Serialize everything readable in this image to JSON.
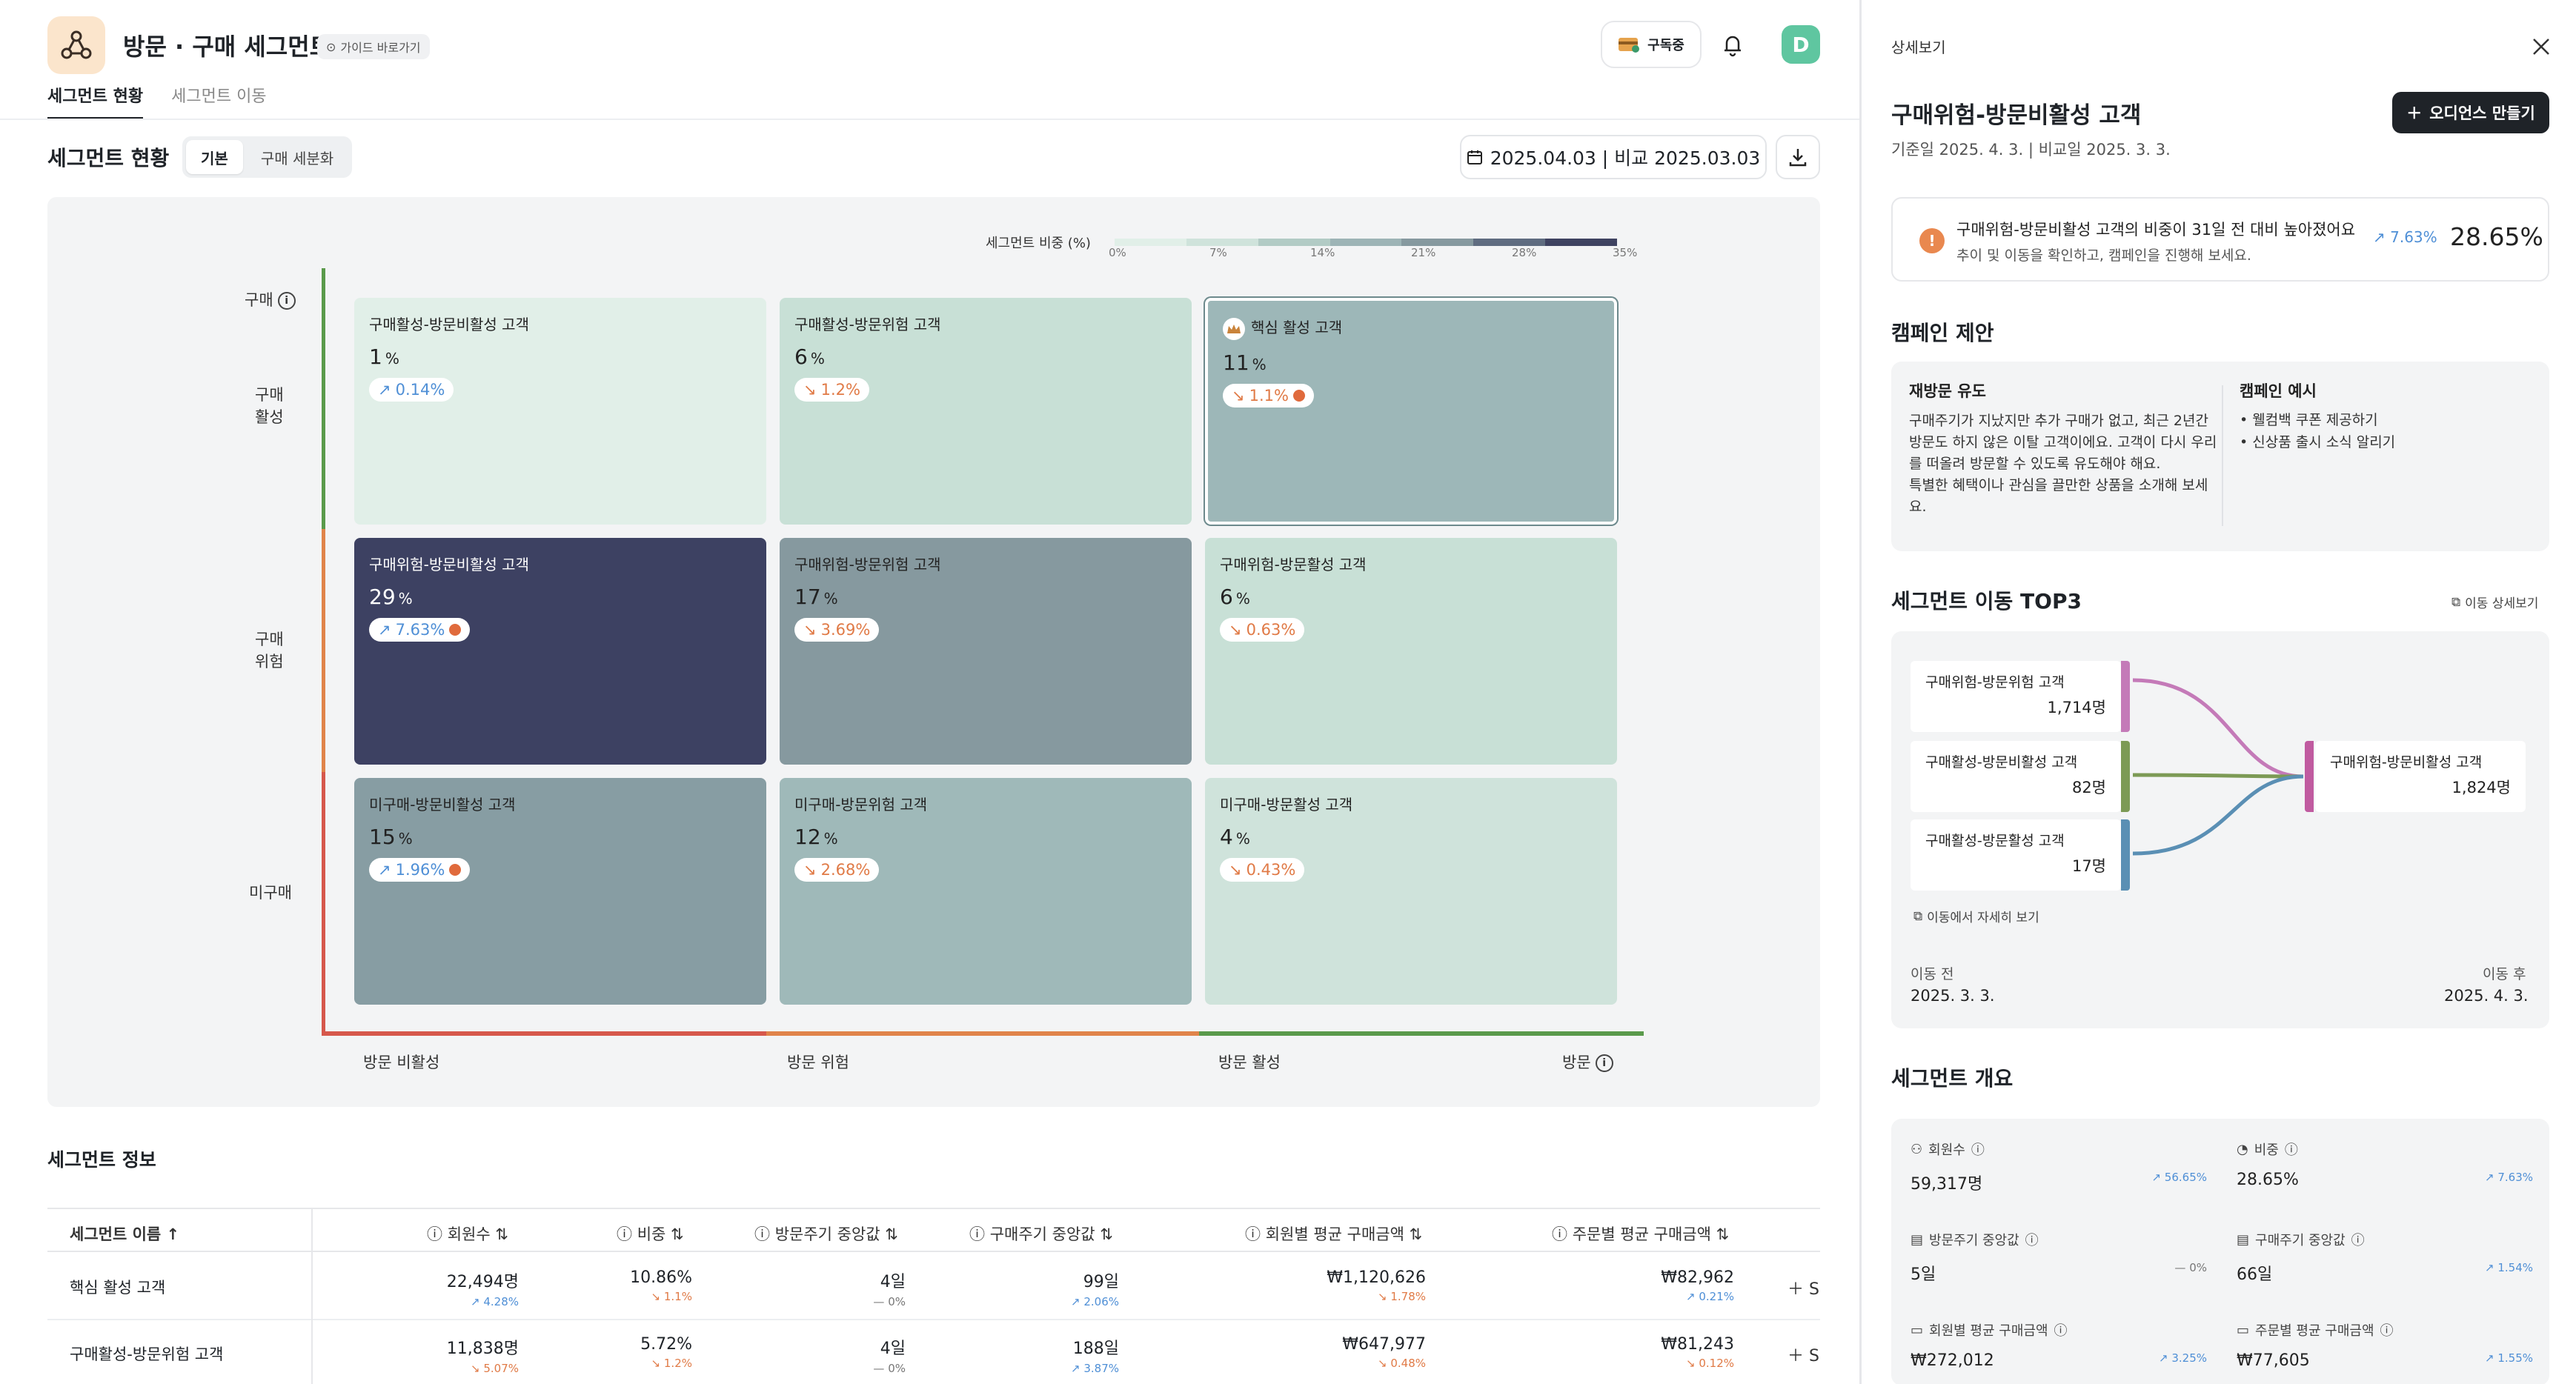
{
  "app": {
    "title": "방문 · 구매 세그먼트",
    "guide": "가이드 바로가기",
    "subscribe": "구독중",
    "avatar": "D"
  },
  "tabs": [
    {
      "label": "세그먼트 현황",
      "active": true
    },
    {
      "label": "세그먼트 이동",
      "active": false
    }
  ],
  "status": {
    "title": "세그먼트 현황",
    "toggle": [
      {
        "label": "기본",
        "active": true
      },
      {
        "label": "구매 세분화",
        "active": false
      }
    ],
    "date": "2025.04.03 | 비교 2025.03.03"
  },
  "legend": {
    "title": "세그먼트 비중 (%)",
    "ticks": [
      "0%",
      "7%",
      "14%",
      "21%",
      "28%",
      "35%"
    ],
    "colors": [
      "#e1efe8",
      "#cfe3db",
      "#b2cbc5",
      "#9db4b6",
      "#86999f",
      "#5f6c80",
      "#3f4361"
    ]
  },
  "axes": {
    "y_title": "구매",
    "y_labels": [
      "구매\n활성",
      "구매\n위험",
      "미구매"
    ],
    "x_labels": [
      "방문 비활성",
      "방문 위험",
      "방문 활성"
    ],
    "x_title": "방문",
    "y_colors": [
      "#5a9a4b",
      "#e0844a",
      "#d6584c"
    ],
    "x_colors": [
      "#d6584c",
      "#e0844a",
      "#5a9a4b"
    ]
  },
  "cells": [
    {
      "name": "구매활성-방문비활성 고객",
      "value": "1",
      "unit": "%",
      "change": "0.14%",
      "dir": "up",
      "alert": false,
      "bg": "#e1efe8",
      "dark": false
    },
    {
      "name": "구매활성-방문위험 고객",
      "value": "6",
      "unit": "%",
      "change": "1.2%",
      "dir": "down",
      "alert": false,
      "bg": "#c8e0d6",
      "dark": false
    },
    {
      "name": "핵심 활성 고객",
      "value": "11",
      "unit": "%",
      "change": "1.1%",
      "dir": "down",
      "alert": true,
      "bg": "#9db7b8",
      "dark": false,
      "core": true
    },
    {
      "name": "구매위험-방문비활성 고객",
      "value": "29",
      "unit": "%",
      "change": "7.63%",
      "dir": "up",
      "alert": true,
      "bg": "#3d4162",
      "dark": true
    },
    {
      "name": "구매위험-방문위험 고객",
      "value": "17",
      "unit": "%",
      "change": "3.69%",
      "dir": "down",
      "alert": false,
      "bg": "#86999f",
      "dark": false
    },
    {
      "name": "구매위험-방문활성 고객",
      "value": "6",
      "unit": "%",
      "change": "0.63%",
      "dir": "down",
      "alert": false,
      "bg": "#c8e0d6",
      "dark": false
    },
    {
      "name": "미구매-방문비활성 고객",
      "value": "15",
      "unit": "%",
      "change": "1.96%",
      "dir": "up",
      "alert": true,
      "bg": "#879da3",
      "dark": false
    },
    {
      "name": "미구매-방문위험 고객",
      "value": "12",
      "unit": "%",
      "change": "2.68%",
      "dir": "down",
      "alert": false,
      "bg": "#9fb9b9",
      "dark": false
    },
    {
      "name": "미구매-방문활성 고객",
      "value": "4",
      "unit": "%",
      "change": "0.43%",
      "dir": "down",
      "alert": false,
      "bg": "#cfe3db",
      "dark": false
    }
  ],
  "info": {
    "title": "세그먼트 정보",
    "headers": [
      "세그먼트 이름 ↑",
      "회원수",
      "비중",
      "방문주기 중앙값",
      "구매주기 중앙값",
      "회원별 평균 구매금액",
      "주문별 평균 구매금액"
    ],
    "rows": [
      {
        "name": "핵심 활성 고객",
        "cells": [
          [
            "22,494명",
            "4.28%",
            "up"
          ],
          [
            "10.86%",
            "1.1%",
            "down"
          ],
          [
            "4일",
            "— 0%",
            "flat"
          ],
          [
            "99일",
            "2.06%",
            "up"
          ],
          [
            "₩1,120,626",
            "1.78%",
            "down"
          ],
          [
            "₩82,962",
            "0.21%",
            "up"
          ]
        ]
      },
      {
        "name": "구매활성-방문위험 고객",
        "cells": [
          [
            "11,838명",
            "5.07%",
            "down"
          ],
          [
            "5.72%",
            "1.2%",
            "down"
          ],
          [
            "4일",
            "— 0%",
            "flat"
          ],
          [
            "188일",
            "3.87%",
            "up"
          ],
          [
            "₩647,977",
            "0.48%",
            "down"
          ],
          [
            "₩81,243",
            "0.12%",
            "down"
          ]
        ]
      }
    ],
    "add_label": "S"
  },
  "side": {
    "header": "상세보기",
    "title": "구매위험-방문비활성 고객",
    "subtitle": "기준일 2025. 4. 3. | 비교일 2025. 3. 3.",
    "audience_btn": "오디언스 만들기",
    "alert": {
      "text": "구매위험-방문비활성 고객의 비중이 31일 전 대비 높아졌어요",
      "sub": "추이 및 이동을 확인하고, 캠페인을 진행해 보세요.",
      "change": "7.63%",
      "value": "28.65%"
    },
    "campaign": {
      "title": "캠페인 제안",
      "left_title": "재방문 유도",
      "left_body": "구매주기가 지났지만 추가 구매가 없고, 최근 2년간 방문도 하지 않은 이탈 고객이에요. 고객이 다시 우리를 떠올려 방문할 수 있도록 유도해야 해요.\n특별한 혜택이나 관심을 끌만한 상품을 소개해 보세요.",
      "right_title": "캠페인 예시",
      "right_items": [
        "• 웰컴백 쿠폰 제공하기",
        "• 신상품 출시 소식 알리기"
      ]
    },
    "move": {
      "title": "세그먼트 이동 TOP3",
      "link": "이동 상세보기",
      "sources": [
        {
          "name": "구매위험-방문위험 고객",
          "count": "1,714명",
          "color": "#c47ab8"
        },
        {
          "name": "구매활성-방문비활성 고객",
          "count": "82명",
          "color": "#7c9a55"
        },
        {
          "name": "구매활성-방문활성 고객",
          "count": "17명",
          "color": "#5a8fb4"
        }
      ],
      "target": {
        "name": "구매위험-방문비활성 고객",
        "count": "1,824명",
        "color": "#c05ba0"
      },
      "more": "이동에서 자세히 보기",
      "before_label": "이동 전",
      "before_date": "2025. 3. 3.",
      "after_label": "이동 후",
      "after_date": "2025. 4. 3."
    },
    "overview": {
      "title": "세그먼트 개요",
      "items": [
        {
          "label": "회원수",
          "value": "59,317명",
          "change": "56.65%",
          "dir": "up"
        },
        {
          "label": "비중",
          "value": "28.65%",
          "change": "7.63%",
          "dir": "up"
        },
        {
          "label": "방문주기 중앙값",
          "value": "5일",
          "change": "— 0%",
          "dir": "flat"
        },
        {
          "label": "구매주기 중앙값",
          "value": "66일",
          "change": "1.54%",
          "dir": "up"
        },
        {
          "label": "회원별 평균 구매금액",
          "value": "₩272,012",
          "change": "3.25%",
          "dir": "up"
        },
        {
          "label": "주문별 평균 구매금액",
          "value": "₩77,605",
          "change": "1.55%",
          "dir": "up"
        }
      ]
    }
  }
}
